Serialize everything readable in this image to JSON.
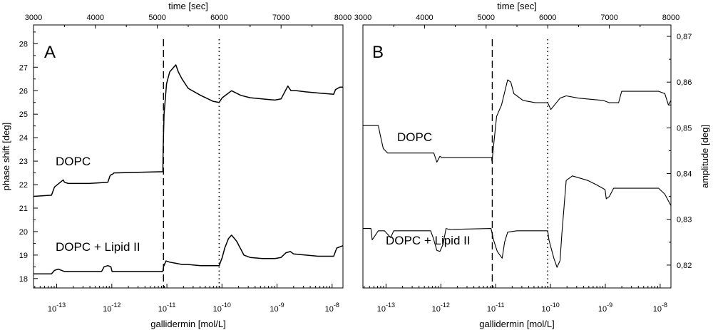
{
  "chart_data": [
    {
      "type": "line",
      "panel_letter": "A",
      "top_axis": {
        "label": "time [sec]",
        "range": [
          3000,
          8000
        ],
        "ticks": [
          "3000",
          "4000",
          "5000",
          "6000",
          "7000",
          "8000"
        ]
      },
      "bottom_axis": {
        "label": "gallidermin [mol/L]",
        "scale": "log",
        "ticks": [
          {
            "base": "10",
            "exp": "-13"
          },
          {
            "base": "10",
            "exp": "-12"
          },
          {
            "base": "10",
            "exp": "-11"
          },
          {
            "base": "10",
            "exp": "-10"
          },
          {
            "base": "10",
            "exp": "-9"
          },
          {
            "base": "10",
            "exp": "-8"
          }
        ]
      },
      "y_axis": {
        "label": "phase shift [deg]",
        "side": "left",
        "range": [
          17.6,
          28.8
        ],
        "ticks": [
          "18",
          "19",
          "20",
          "21",
          "22",
          "23",
          "24",
          "25",
          "26",
          "27",
          "28"
        ]
      },
      "markers": [
        {
          "style": "dashed",
          "x": 5100
        },
        {
          "style": "dotted",
          "x": 6000
        }
      ],
      "series": [
        {
          "name": "DOPC",
          "x": [
            3000,
            3290,
            3340,
            3480,
            3500,
            3560,
            3900,
            4200,
            4240,
            4280,
            4300,
            5090,
            5095,
            5110,
            5150,
            5200,
            5300,
            5340,
            5400,
            5500,
            5700,
            5900,
            6000,
            6050,
            6200,
            6350,
            6500,
            6900,
            7000,
            7110,
            7160,
            7250,
            7400,
            7600,
            7850,
            7880,
            7950,
            8000
          ],
          "y": [
            21.5,
            21.55,
            21.9,
            22.2,
            22.1,
            22.05,
            22.05,
            22.1,
            22.4,
            22.45,
            22.5,
            22.55,
            23.5,
            25.0,
            26.3,
            26.8,
            27.1,
            26.8,
            26.5,
            26.1,
            25.8,
            25.55,
            25.5,
            25.7,
            26.0,
            25.8,
            25.7,
            25.6,
            25.65,
            26.2,
            26.0,
            26.0,
            25.95,
            25.9,
            25.85,
            26.05,
            26.15,
            26.15
          ]
        },
        {
          "name": "DOPC + Lipid II",
          "x": [
            3000,
            3290,
            3340,
            3400,
            3500,
            4100,
            4140,
            4200,
            4250,
            4270,
            4300,
            5090,
            5100,
            5140,
            5200,
            5300,
            5400,
            5500,
            5700,
            5900,
            6000,
            6050,
            6090,
            6150,
            6200,
            6280,
            6400,
            6500,
            6700,
            6900,
            7000,
            7080,
            7150,
            7200,
            7400,
            7600,
            7850,
            7900,
            8000
          ],
          "y": [
            18.2,
            18.2,
            18.35,
            18.4,
            18.3,
            18.3,
            18.5,
            18.55,
            18.5,
            18.3,
            18.3,
            18.3,
            18.5,
            18.75,
            18.7,
            18.65,
            18.6,
            18.6,
            18.55,
            18.55,
            18.55,
            18.9,
            19.3,
            19.7,
            19.85,
            19.6,
            19.0,
            18.9,
            18.85,
            18.85,
            18.9,
            19.1,
            19.15,
            19.05,
            19.0,
            18.95,
            18.95,
            19.3,
            19.4
          ]
        }
      ]
    },
    {
      "type": "line",
      "panel_letter": "B",
      "top_axis": {
        "label": "time [sec]",
        "range": [
          3000,
          8000
        ],
        "ticks": [
          "3000",
          "4000",
          "5000",
          "6000",
          "7000",
          "8000"
        ]
      },
      "bottom_axis": {
        "label": "gallidermin [mol/L]",
        "scale": "log",
        "ticks": [
          {
            "base": "10",
            "exp": "-13"
          },
          {
            "base": "10",
            "exp": "-12"
          },
          {
            "base": "10",
            "exp": "-11"
          },
          {
            "base": "10",
            "exp": "-10"
          },
          {
            "base": "10",
            "exp": "-9"
          },
          {
            "base": "10",
            "exp": "-8"
          }
        ]
      },
      "y_axis": {
        "label": "amplitude [deg]",
        "side": "right",
        "range": [
          0.815,
          0.8725
        ],
        "ticks": [
          "0,82",
          "0,83",
          "0,84",
          "0,85",
          "0,86",
          "0,87"
        ]
      },
      "markers": [
        {
          "style": "dashed",
          "x": 5100
        },
        {
          "style": "dotted",
          "x": 6000
        }
      ],
      "series": [
        {
          "name": "DOPC",
          "x": [
            3000,
            3250,
            3280,
            3330,
            3400,
            4150,
            4200,
            4250,
            4280,
            5090,
            5095,
            5120,
            5170,
            5250,
            5350,
            5400,
            5450,
            5500,
            5600,
            5800,
            6000,
            6050,
            6200,
            6300,
            6500,
            6900,
            7000,
            7150,
            7200,
            7300,
            7600,
            7800,
            7900,
            7960,
            8000
          ],
          "y": [
            0.8505,
            0.8505,
            0.8485,
            0.8455,
            0.8445,
            0.8445,
            0.8425,
            0.8438,
            0.8435,
            0.8435,
            0.8425,
            0.846,
            0.8525,
            0.855,
            0.8605,
            0.86,
            0.8575,
            0.857,
            0.856,
            0.8555,
            0.8555,
            0.854,
            0.8565,
            0.857,
            0.8565,
            0.856,
            0.8555,
            0.8555,
            0.858,
            0.858,
            0.858,
            0.858,
            0.8575,
            0.855,
            0.856
          ]
        },
        {
          "name": "DOPC + Lipid II",
          "x": [
            3000,
            3130,
            3150,
            3200,
            3250,
            3350,
            3450,
            3500,
            4100,
            4140,
            4200,
            4250,
            4300,
            4350,
            4400,
            5080,
            5120,
            5180,
            5260,
            5300,
            5350,
            5500,
            5800,
            6000,
            6020,
            6100,
            6150,
            6200,
            6230,
            6300,
            6400,
            6650,
            6800,
            6930,
            6950,
            7000,
            7070,
            7200,
            7400,
            7600,
            7800,
            7900,
            8000
          ],
          "y": [
            0.828,
            0.828,
            0.8255,
            0.8265,
            0.8275,
            0.8275,
            0.826,
            0.8275,
            0.8275,
            0.826,
            0.8232,
            0.823,
            0.8245,
            0.828,
            0.8278,
            0.828,
            0.8255,
            0.823,
            0.8215,
            0.825,
            0.8272,
            0.8275,
            0.8275,
            0.8275,
            0.8255,
            0.8215,
            0.8195,
            0.821,
            0.827,
            0.8385,
            0.8395,
            0.8385,
            0.8375,
            0.8365,
            0.8345,
            0.835,
            0.8368,
            0.8368,
            0.8368,
            0.8368,
            0.8368,
            0.8355,
            0.833
          ]
        }
      ]
    }
  ]
}
